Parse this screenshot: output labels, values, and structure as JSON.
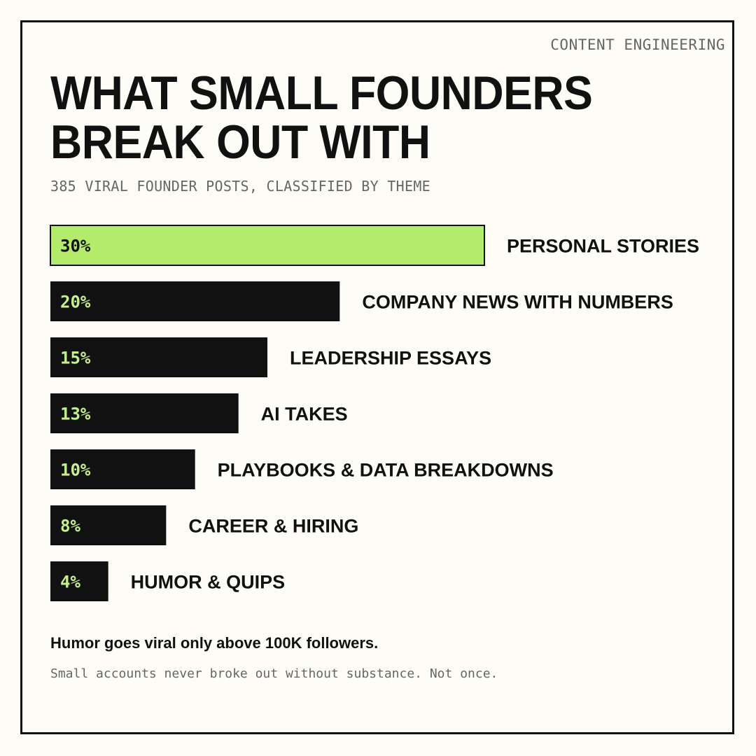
{
  "header": {
    "brand": "CONTENT ENGINEERING",
    "title_line1": "WHAT SMALL FOUNDERS",
    "title_line2": "BREAK OUT WITH",
    "subtitle": "385 VIRAL FOUNDER POSTS, CLASSIFIED BY THEME"
  },
  "chart_data": {
    "type": "bar",
    "orientation": "horizontal",
    "categories": [
      "PERSONAL STORIES",
      "COMPANY NEWS WITH NUMBERS",
      "LEADERSHIP ESSAYS",
      "AI TAKES",
      "PLAYBOOKS & DATA BREAKDOWNS",
      "CAREER & HIRING",
      "HUMOR & QUIPS"
    ],
    "values": [
      30,
      20,
      15,
      13,
      10,
      8,
      4
    ],
    "value_labels": [
      "30%",
      "20%",
      "15%",
      "13%",
      "10%",
      "8%",
      "4%"
    ],
    "unit": "%",
    "xlim": [
      0,
      30
    ],
    "grid": false,
    "legend": "none",
    "colors": {
      "highlight_bar": "#b3ec6a",
      "bar": "#111111",
      "highlight_value_text": "#111111",
      "value_text": "#c4f08e",
      "bar_border": "#111111"
    }
  },
  "footer": {
    "note": "Humor goes viral only above 100K followers.",
    "subnote": "Small accounts never broke out without substance. Not once."
  }
}
